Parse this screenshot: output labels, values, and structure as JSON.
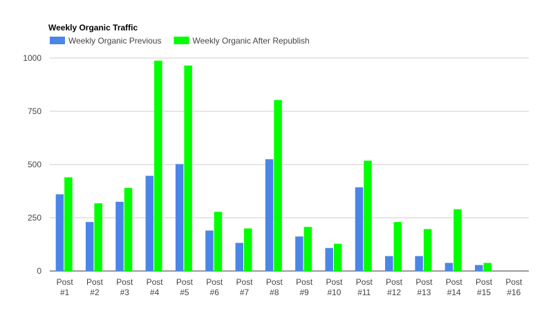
{
  "chart_data": {
    "type": "bar",
    "title": "Weekly Organic Traffic",
    "xlabel": "",
    "ylabel": "",
    "ylim": [
      0,
      1000
    ],
    "yticks": [
      "0",
      "250",
      "500",
      "750",
      "1000"
    ],
    "grid": true,
    "legend_position": "top-left",
    "categories": [
      [
        "Post",
        "#1"
      ],
      [
        "Post",
        "#2"
      ],
      [
        "Post",
        "#3"
      ],
      [
        "Post",
        "#4"
      ],
      [
        "Post",
        "#5"
      ],
      [
        "Post",
        "#6"
      ],
      [
        "Post",
        "#7"
      ],
      [
        "Post",
        "#8"
      ],
      [
        "Post",
        "#9"
      ],
      [
        "Post",
        "#10"
      ],
      [
        "Post",
        "#11"
      ],
      [
        "Post",
        "#12"
      ],
      [
        "Post",
        "#13"
      ],
      [
        "Post",
        "#14"
      ],
      [
        "Post",
        "#15"
      ],
      [
        "Post",
        "#16"
      ]
    ],
    "series": [
      {
        "name": "Weekly Organic Previous",
        "color": "#4a86e8",
        "values": [
          360,
          230,
          325,
          447,
          502,
          190,
          132,
          525,
          162,
          108,
          393,
          70,
          70,
          38,
          28,
          0
        ]
      },
      {
        "name": "Weekly Organic After Republish",
        "color": "#00ff00",
        "values": [
          440,
          318,
          390,
          988,
          965,
          278,
          200,
          803,
          207,
          128,
          518,
          230,
          197,
          290,
          38,
          0
        ]
      }
    ]
  }
}
